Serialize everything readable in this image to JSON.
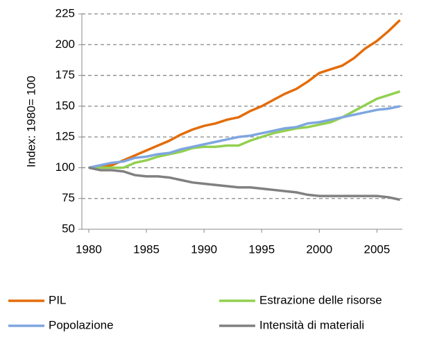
{
  "chart_data": {
    "type": "line",
    "y_label": "Index: 1980= 100",
    "x": [
      1980,
      1981,
      1982,
      1983,
      1984,
      1985,
      1986,
      1987,
      1988,
      1989,
      1990,
      1991,
      1992,
      1993,
      1994,
      1995,
      1996,
      1997,
      1998,
      1999,
      2000,
      2001,
      2002,
      2003,
      2004,
      2005,
      2006,
      2007
    ],
    "series": [
      {
        "name": "PIL",
        "color": "#e36c0a",
        "values": [
          100,
          101,
          102,
          106,
          110,
          114,
          118,
          122,
          127,
          131,
          134,
          136,
          139,
          141,
          146,
          150,
          155,
          160,
          164,
          170,
          177,
          180,
          183,
          189,
          197,
          203,
          211,
          220
        ]
      },
      {
        "name": "Estrazione delle risorse",
        "color": "#92d050",
        "values": [
          100,
          100,
          100,
          100,
          104,
          106,
          109,
          111,
          113,
          116,
          117,
          117,
          118,
          118,
          122,
          125,
          128,
          130,
          132,
          133,
          135,
          137,
          141,
          146,
          151,
          156,
          159,
          162
        ]
      },
      {
        "name": "Popolazione",
        "color": "#7ea6e0",
        "values": [
          100,
          102,
          104,
          105,
          108,
          109,
          111,
          112,
          115,
          117,
          119,
          121,
          123,
          125,
          126,
          128,
          130,
          132,
          133,
          136,
          137,
          139,
          141,
          143,
          145,
          147,
          148,
          150
        ]
      },
      {
        "name": "Intensità di materiali",
        "color": "#808080",
        "values": [
          100,
          98,
          98,
          97,
          94,
          93,
          93,
          92,
          90,
          88,
          87,
          86,
          85,
          84,
          84,
          83,
          82,
          81,
          80,
          78,
          77,
          77,
          77,
          77,
          77,
          77,
          76,
          74
        ]
      }
    ],
    "xlim": [
      1979.4,
      2007.2
    ],
    "xticks": [
      1980,
      1985,
      1990,
      1995,
      2000,
      2005
    ],
    "ylim": [
      50,
      225
    ],
    "yticks": [
      50,
      75,
      100,
      125,
      150,
      175,
      200,
      225
    ],
    "grid": true,
    "legend": "bottom"
  }
}
